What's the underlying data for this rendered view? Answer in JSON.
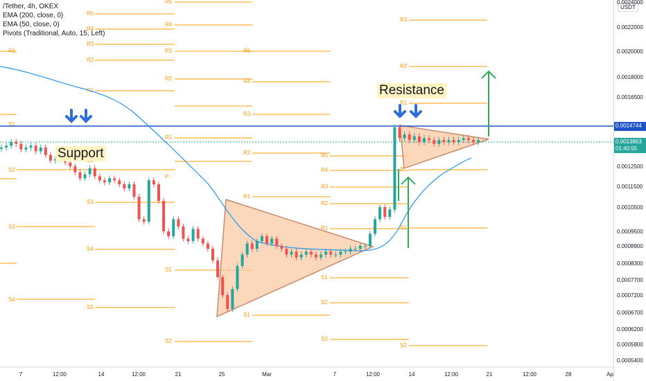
{
  "legend": {
    "symbol": "/Tether, 4h, OKEX",
    "ema200": "EMA (200, close, 0)",
    "ema50": "EMA (50, close, 0)",
    "pivots": "Pivots (Traditional, Auto, 15, Left)"
  },
  "annotations": {
    "support": "Support",
    "resistance": "Resistance"
  },
  "currency": "USDT",
  "price_axis": {
    "ticks": [
      "0.0024000",
      "0.0022000",
      "0.0020000",
      "0.0018000",
      "0.0016500",
      "0.0014500",
      "0.0012500",
      "0.0011500",
      "0.0010500",
      "0.0009500",
      "0.0008900",
      "0.0008300",
      "0.0007700",
      "0.0007200",
      "0.0006700",
      "0.0006200",
      "0.0005800",
      "0.0005400"
    ],
    "resistance_label": "0.0014744",
    "last_price_label": "0.0013863",
    "countdown": "01:40:55"
  },
  "time_axis": [
    "7",
    "12:00",
    "14",
    "12:00",
    "21",
    "25",
    "Mar",
    "7",
    "12:00",
    "14",
    "12:00",
    "21",
    "12:00",
    "28",
    "Ap"
  ],
  "colors": {
    "up": "#26a69a",
    "down": "#ef5350",
    "ema": "#2196f3",
    "pivot": "#ff9800",
    "resistance_line": "#1e53c8",
    "triangle_fill": "#f9cba5",
    "triangle_edge": "#c98a6a",
    "arrow_green": "#2fa85c",
    "arrow_blue": "#2d6fd6"
  },
  "chart_data": {
    "type": "candlestick",
    "price_ticks": [
      0.0024,
      0.0022,
      0.002,
      0.0018,
      0.00165,
      0.00145,
      0.00125,
      0.00115,
      0.00105,
      0.00095,
      0.00089,
      0.00083,
      0.00077,
      0.00072,
      0.00067,
      0.00062,
      0.00058,
      0.00054
    ],
    "resistance": 0.0014744,
    "last_price": 0.0013863,
    "closes": [
      0.00135,
      0.00136,
      0.00138,
      0.00137,
      0.00134,
      0.00135,
      0.00136,
      0.00133,
      0.00135,
      0.00131,
      0.00128,
      0.00129,
      0.0013,
      0.00127,
      0.00125,
      0.00122,
      0.00119,
      0.00121,
      0.00124,
      0.0012,
      0.00118,
      0.00117,
      0.00119,
      0.00118,
      0.00116,
      0.00114,
      0.00116,
      0.0011,
      0.001,
      0.00099,
      0.00118,
      0.00116,
      0.00108,
      0.00095,
      0.00093,
      0.001,
      0.00097,
      0.00092,
      0.00091,
      0.00096,
      0.00092,
      0.0009,
      0.00088,
      0.00084,
      0.00078,
      0.00072,
      0.00068,
      0.00074,
      0.00082,
      0.00086,
      0.0009,
      0.00088,
      0.00091,
      0.00093,
      0.0009,
      0.00092,
      0.00089,
      0.00088,
      0.00086,
      0.00087,
      0.00085,
      0.00086,
      0.00087,
      0.00086,
      0.00085,
      0.00086,
      0.00087,
      0.00086,
      0.00086,
      0.00087,
      0.00087,
      0.00088,
      0.00088,
      0.00089,
      0.00089,
      0.00094,
      0.001,
      0.00105,
      0.00101,
      0.00104,
      0.00146,
      0.0014,
      0.00142,
      0.00139,
      0.00141,
      0.00138,
      0.0014,
      0.00139,
      0.00137,
      0.00139,
      0.00138,
      0.00139,
      0.00138,
      0.00139,
      0.0014,
      0.00139,
      0.00138,
      0.00139
    ]
  }
}
